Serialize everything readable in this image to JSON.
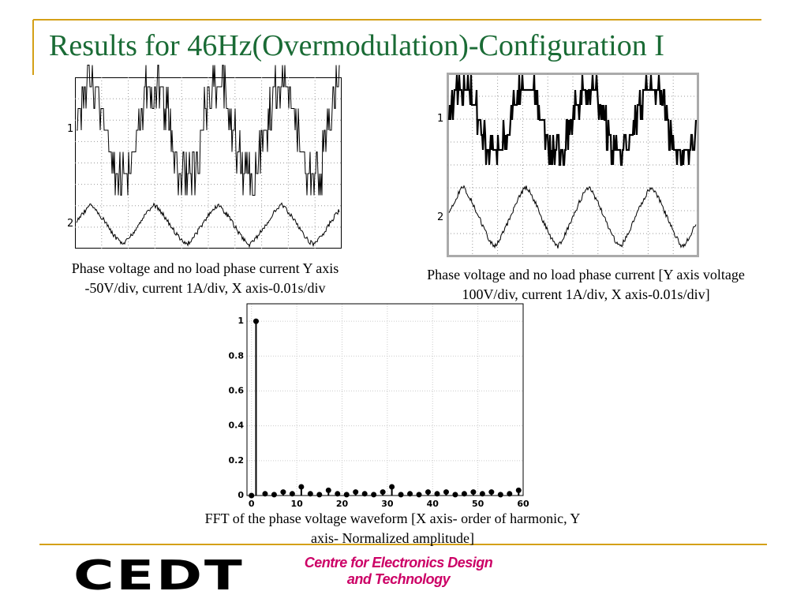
{
  "title": "Results for 46Hz(Overmodulation)-Configuration I",
  "scopes": [
    {
      "trace_labels": [
        "1",
        "2"
      ]
    },
    {
      "trace_labels": [
        "1",
        "2"
      ]
    }
  ],
  "captions": {
    "left": "Phase voltage and no load phase current Y axis -50V/div, current 1A/div, X axis-0.01s/div",
    "right": "Phase voltage and  no load phase current [Y axis voltage 100V/div, current 1A/div, X axis-0.01s/div]",
    "fft": "FFT of the phase voltage waveform [X axis- order of harmonic, Y axis- Normalized amplitude]"
  },
  "chart_data": {
    "type": "stem",
    "x": [
      0,
      1,
      3,
      5,
      7,
      9,
      11,
      13,
      15,
      17,
      19,
      21,
      23,
      25,
      27,
      29,
      31,
      33,
      35,
      37,
      39,
      41,
      43,
      45,
      47,
      49,
      51,
      53,
      55,
      57,
      59
    ],
    "values": [
      0,
      1,
      0.01,
      0.005,
      0.02,
      0.01,
      0.05,
      0.01,
      0.005,
      0.03,
      0.01,
      0.005,
      0.02,
      0.01,
      0.005,
      0.02,
      0.05,
      0.005,
      0.01,
      0.005,
      0.02,
      0.01,
      0.02,
      0.005,
      0.01,
      0.02,
      0.01,
      0.02,
      0.005,
      0.01,
      0.03
    ],
    "xlim": [
      -1,
      60
    ],
    "ylim": [
      0,
      1.1
    ],
    "xticks": [
      0,
      10,
      20,
      30,
      40,
      50,
      60
    ],
    "yticks": [
      0,
      0.2,
      0.4,
      0.6,
      0.8,
      1
    ],
    "grid": true,
    "color": "#000000"
  },
  "footer": {
    "logo": "CEDT",
    "org_lines": [
      "Centre for Electronics Design",
      "and Technology"
    ]
  }
}
